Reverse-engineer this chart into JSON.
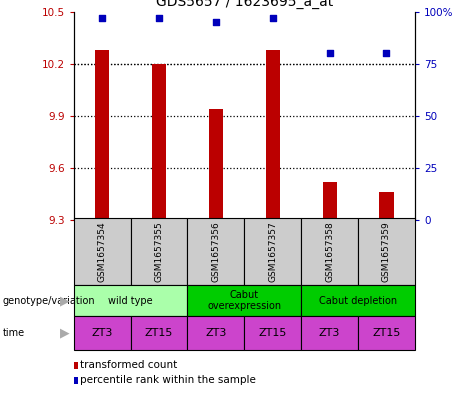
{
  "title": "GDS5657 / 1623695_a_at",
  "samples": [
    "GSM1657354",
    "GSM1657355",
    "GSM1657356",
    "GSM1657357",
    "GSM1657358",
    "GSM1657359"
  ],
  "bar_values": [
    10.28,
    10.2,
    9.94,
    10.28,
    9.52,
    9.46
  ],
  "percentile_values": [
    97,
    97,
    95,
    97,
    80,
    80
  ],
  "ylim_left": [
    9.3,
    10.5
  ],
  "ylim_right": [
    0,
    100
  ],
  "yticks_left": [
    9.3,
    9.6,
    9.9,
    10.2,
    10.5
  ],
  "yticks_right": [
    0,
    25,
    50,
    75,
    100
  ],
  "bar_color": "#bb0000",
  "dot_color": "#0000bb",
  "genotype_groups": [
    {
      "label": "wild type",
      "span": [
        0,
        2
      ],
      "color": "#aaffaa"
    },
    {
      "label": "Cabut\noverexpression",
      "span": [
        2,
        4
      ],
      "color": "#00dd00"
    },
    {
      "label": "Cabut depletion",
      "span": [
        4,
        6
      ],
      "color": "#00dd00"
    }
  ],
  "time_labels": [
    "ZT3",
    "ZT15",
    "ZT3",
    "ZT15",
    "ZT3",
    "ZT15"
  ],
  "time_color": "#cc44cc",
  "sample_bg_color": "#cccccc",
  "legend_items": [
    {
      "label": "transformed count",
      "color": "#bb0000"
    },
    {
      "label": "percentile rank within the sample",
      "color": "#0000bb"
    }
  ],
  "genotype_label": "genotype/variation",
  "time_label": "time"
}
